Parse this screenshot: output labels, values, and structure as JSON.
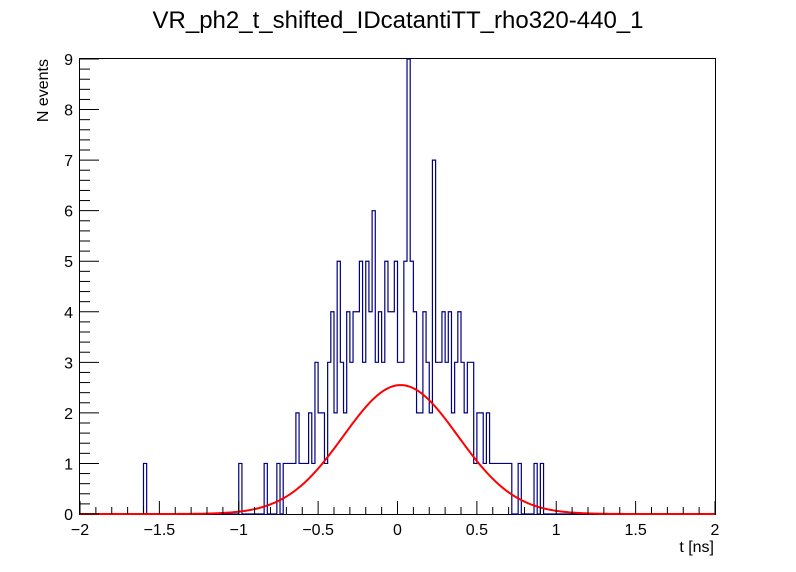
{
  "chart_data": {
    "type": "histogram",
    "title": "VR_ph2_t_shifted_IDcatantiTT_rho320-440_1",
    "xlabel": "t [ns]",
    "ylabel": "N events",
    "xlim": [
      -2,
      2
    ],
    "ylim": [
      0,
      9
    ],
    "x_tick_labels": [
      "−2",
      "−1.5",
      "−1",
      "−0.5",
      "0",
      "0.5",
      "1",
      "1.5",
      "2"
    ],
    "x_tick_values": [
      -2,
      -1.5,
      -1,
      -0.5,
      0,
      0.5,
      1,
      1.5,
      2
    ],
    "y_tick_labels": [
      "0",
      "1",
      "2",
      "3",
      "4",
      "5",
      "6",
      "7",
      "8",
      "9"
    ],
    "y_tick_values": [
      0,
      1,
      2,
      3,
      4,
      5,
      6,
      7,
      8,
      9
    ],
    "bin_width": 0.02,
    "series": [
      {
        "name": "histogram",
        "color": "#000080",
        "x_low": [
          -1.6,
          -1.0,
          -0.84,
          -0.76,
          -0.72,
          -0.7,
          -0.68,
          -0.66,
          -0.64,
          -0.62,
          -0.6,
          -0.58,
          -0.56,
          -0.54,
          -0.52,
          -0.5,
          -0.48,
          -0.46,
          -0.44,
          -0.42,
          -0.4,
          -0.38,
          -0.36,
          -0.34,
          -0.32,
          -0.3,
          -0.28,
          -0.26,
          -0.24,
          -0.22,
          -0.2,
          -0.18,
          -0.16,
          -0.14,
          -0.12,
          -0.1,
          -0.08,
          -0.06,
          -0.04,
          -0.02,
          0.0,
          0.02,
          0.04,
          0.06,
          0.08,
          0.1,
          0.12,
          0.14,
          0.16,
          0.18,
          0.2,
          0.22,
          0.24,
          0.26,
          0.28,
          0.3,
          0.32,
          0.34,
          0.36,
          0.38,
          0.4,
          0.42,
          0.44,
          0.46,
          0.48,
          0.5,
          0.52,
          0.54,
          0.56,
          0.58,
          0.6,
          0.62,
          0.64,
          0.66,
          0.68,
          0.7,
          0.76,
          0.86,
          0.9
        ],
        "counts": [
          1,
          1,
          1,
          1,
          1,
          1,
          1,
          1,
          2,
          1,
          1,
          1,
          2,
          1,
          3,
          2,
          2,
          1,
          3,
          4,
          2,
          5,
          3,
          2,
          4,
          3,
          4,
          4,
          5,
          3,
          5,
          4,
          6,
          3,
          4,
          3,
          5,
          4,
          4,
          5,
          3,
          3,
          5,
          9,
          5,
          4,
          2,
          2,
          4,
          3,
          2,
          7,
          3,
          3,
          4,
          3,
          4,
          2,
          3,
          4,
          3,
          2,
          3,
          3,
          1,
          2,
          2,
          1,
          2,
          1,
          1,
          1,
          1,
          1,
          1,
          1,
          1,
          1,
          1
        ]
      },
      {
        "name": "gaussian-fit",
        "color": "#ff0000",
        "function": "gaussian",
        "amplitude": 2.55,
        "mean": 0.02,
        "sigma": 0.36
      }
    ]
  }
}
